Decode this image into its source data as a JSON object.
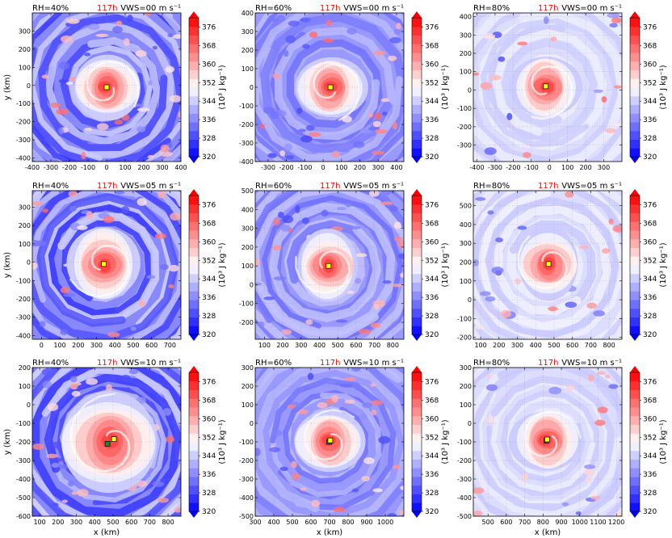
{
  "figure": {
    "colorbar": {
      "ticks": [
        320,
        328,
        336,
        344,
        352,
        360,
        368,
        376
      ],
      "range": [
        320,
        380
      ],
      "label": "(10³ J kg⁻¹)",
      "colormap": "bwr"
    },
    "time_label": "117h",
    "time_color": "#ff0000"
  },
  "chart_data": [
    {
      "type": "heatmap",
      "rh_label": "RH=40%",
      "vws_label": "VWS=00 m s⁻¹",
      "xlabel": "",
      "ylabel": "y (km)",
      "xlim": [
        -400,
        400
      ],
      "ylim": [
        -420,
        400
      ],
      "xticks": [
        -400,
        -300,
        -200,
        -100,
        0,
        100,
        200,
        300,
        400
      ],
      "yticks": [
        -400,
        -300,
        -200,
        -100,
        0,
        100,
        200,
        300
      ],
      "center": [
        0,
        -10
      ],
      "eye_markers": [
        {
          "x": 0,
          "y": -10,
          "color": "#ffff00"
        }
      ],
      "core": "strong",
      "field": "mixed"
    },
    {
      "type": "heatmap",
      "rh_label": "RH=60%",
      "vws_label": "VWS=00 m s⁻¹",
      "xlabel": "",
      "ylabel": "",
      "xlim": [
        -370,
        440
      ],
      "ylim": [
        -400,
        400
      ],
      "xticks": [
        -300,
        -200,
        -100,
        0,
        100,
        200,
        300,
        400
      ],
      "yticks": [
        -400,
        -300,
        -200,
        -100,
        0,
        100,
        200,
        300,
        400
      ],
      "center": [
        40,
        0
      ],
      "eye_markers": [
        {
          "x": 40,
          "y": 0,
          "color": "#ffff00"
        }
      ],
      "core": "strong",
      "field": "blue"
    },
    {
      "type": "heatmap",
      "rh_label": "RH=80%",
      "vws_label": "VWS=00 m s⁻¹",
      "xlabel": "",
      "ylabel": "",
      "xlim": [
        -420,
        400
      ],
      "ylim": [
        -390,
        420
      ],
      "xticks": [
        -400,
        -300,
        -200,
        -100,
        0,
        100,
        200,
        300
      ],
      "yticks": [
        -300,
        -200,
        -100,
        0,
        100,
        200,
        300,
        400
      ],
      "center": [
        -20,
        20
      ],
      "eye_markers": [
        {
          "x": -20,
          "y": 20,
          "color": "#ffff00"
        }
      ],
      "core": "strong",
      "field": "pale"
    },
    {
      "type": "heatmap",
      "rh_label": "RH=40%",
      "vws_label": "VWS=05 m s⁻¹",
      "xlabel": "",
      "ylabel": "y (km)",
      "xlim": [
        -50,
        760
      ],
      "ylim": [
        -420,
        390
      ],
      "xticks": [
        0,
        100,
        200,
        300,
        400,
        500,
        600,
        700
      ],
      "yticks": [
        -400,
        -300,
        -200,
        -100,
        0,
        100,
        200,
        300
      ],
      "center": [
        340,
        -10
      ],
      "eye_markers": [
        {
          "x": 340,
          "y": -10,
          "color": "#ffff00"
        }
      ],
      "core": "medium",
      "field": "mixed"
    },
    {
      "type": "heatmap",
      "rh_label": "RH=60%",
      "vws_label": "VWS=05 m s⁻¹",
      "xlabel": "",
      "ylabel": "",
      "xlim": [
        50,
        860
      ],
      "ylim": [
        -290,
        500
      ],
      "xticks": [
        100,
        200,
        300,
        400,
        500,
        600,
        700,
        800
      ],
      "yticks": [
        -200,
        -100,
        0,
        100,
        200,
        300,
        400,
        500
      ],
      "center": [
        450,
        100
      ],
      "eye_markers": [
        {
          "x": 450,
          "y": 100,
          "color": "#ffff00"
        }
      ],
      "core": "strong",
      "field": "blue"
    },
    {
      "type": "heatmap",
      "rh_label": "RH=80%",
      "vws_label": "VWS=05 m s⁻¹",
      "xlabel": "",
      "ylabel": "",
      "xlim": [
        60,
        870
      ],
      "ylim": [
        -210,
        580
      ],
      "xticks": [
        100,
        200,
        300,
        400,
        500,
        600,
        700,
        800
      ],
      "yticks": [
        -200,
        -100,
        0,
        100,
        200,
        300,
        400,
        500
      ],
      "center": [
        470,
        190
      ],
      "eye_markers": [
        {
          "x": 470,
          "y": 190,
          "color": "#ffff00"
        }
      ],
      "core": "strong",
      "field": "pale"
    },
    {
      "type": "heatmap",
      "rh_label": "RH=40%",
      "vws_label": "VWS=10 m s⁻¹",
      "xlabel": "x (km)",
      "ylabel": "y (km)",
      "xlim": [
        60,
        870
      ],
      "ylim": [
        -600,
        200
      ],
      "xticks": [
        100,
        200,
        300,
        400,
        500,
        600,
        700,
        800
      ],
      "yticks": [
        -600,
        -500,
        -400,
        -300,
        -200,
        -100,
        0,
        100,
        200
      ],
      "center": [
        480,
        -200
      ],
      "eye_markers": [
        {
          "x": 470,
          "y": -210,
          "color": "#1a8a2a"
        },
        {
          "x": 505,
          "y": -185,
          "color": "#ffff00"
        }
      ],
      "core": "wide",
      "field": "mixed"
    },
    {
      "type": "heatmap",
      "rh_label": "RH=60%",
      "vws_label": "VWS=10 m s⁻¹",
      "xlabel": "x (km)",
      "ylabel": "",
      "xlim": [
        300,
        1100
      ],
      "ylim": [
        -500,
        300
      ],
      "xticks": [
        300,
        400,
        500,
        600,
        700,
        800,
        900,
        1000
      ],
      "yticks": [
        -500,
        -400,
        -300,
        -200,
        -100,
        0,
        100,
        200,
        300
      ],
      "center": [
        700,
        -95
      ],
      "eye_markers": [
        {
          "x": 698,
          "y": -100,
          "color": "#1a8a2a"
        },
        {
          "x": 704,
          "y": -92,
          "color": "#ffff00"
        }
      ],
      "core": "strong",
      "field": "blue"
    },
    {
      "type": "heatmap",
      "rh_label": "RH=80%",
      "vws_label": "VWS=10 m s⁻¹",
      "xlabel": "x (km)",
      "ylabel": "",
      "xlim": [
        420,
        1230
      ],
      "ylim": [
        -500,
        300
      ],
      "xticks": [
        500,
        600,
        700,
        800,
        900,
        1000,
        1100,
        1200
      ],
      "yticks": [
        -500,
        -400,
        -300,
        -200,
        -100,
        0,
        100,
        200,
        300
      ],
      "center": [
        820,
        -90
      ],
      "eye_markers": [
        {
          "x": 818,
          "y": -93,
          "color": "#1a8a2a"
        },
        {
          "x": 822,
          "y": -87,
          "color": "#ffff00"
        }
      ],
      "core": "strong",
      "field": "pale"
    }
  ]
}
